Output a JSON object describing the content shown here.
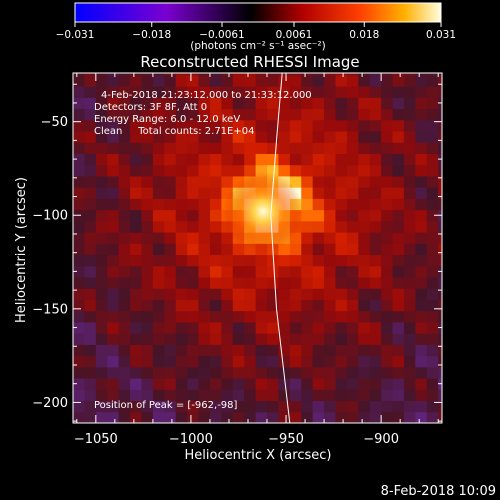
{
  "chart_data": {
    "type": "heatmap",
    "title": "Reconstructed RHESSI Image",
    "xlabel": "Heliocentric X (arcsec)",
    "ylabel": "Heliocentric Y (arcsec)",
    "xlim": [
      -1062,
      -868
    ],
    "ylim": [
      -211,
      -24
    ],
    "xticks": [
      -1050,
      -1000,
      -950,
      -900
    ],
    "yticks": [
      -50,
      -100,
      -150,
      -200
    ],
    "colorbar": {
      "range": [
        -0.031,
        0.031
      ],
      "ticks": [
        -0.031,
        -0.018,
        -0.0061,
        0.0061,
        0.018,
        0.031
      ],
      "tick_labels": [
        "−0.031",
        "−0.018",
        "−0.0061",
        "0.0061",
        "0.018",
        "0.031"
      ],
      "units_label": "(photons cm⁻² s⁻¹ asec⁻²)"
    },
    "annotations": [
      "4-Feb-2018 21:23:12.000 to 21:33:12.000",
      "Detectors: 3F 8F, Att 0",
      "Energy Range: 6.0 - 12.0 keV",
      "Clean     Total counts: 2.71E+04"
    ],
    "peak_label": "Position of Peak = [-962,-98]",
    "peak": [
      -962,
      -98
    ],
    "limb_points": [
      [
        -952,
        -24
      ],
      [
        -955,
        -60
      ],
      [
        -958,
        -100
      ],
      [
        -955,
        -150
      ],
      [
        -948,
        -211
      ]
    ],
    "colors": {
      "background": "#000000",
      "limb": "#ffffff"
    }
  },
  "footer": {
    "date": "8-Feb-2018 10:09"
  }
}
